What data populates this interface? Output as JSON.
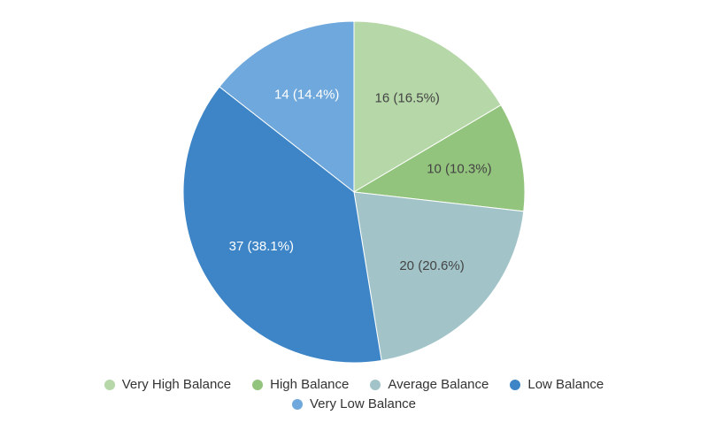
{
  "chart_data": {
    "type": "pie",
    "title": "",
    "slices": [
      {
        "name": "Very High Balance",
        "value": 16,
        "label": "16 (16.5%)",
        "color": "#b6d7a8"
      },
      {
        "name": "High Balance",
        "value": 10,
        "label": "10 (10.3%)",
        "color": "#93c47d"
      },
      {
        "name": "Average Balance",
        "value": 20,
        "label": "20 (20.6%)",
        "color": "#a2c4c9"
      },
      {
        "name": "Low Balance",
        "value": 37,
        "label": "37 (38.1%)",
        "color": "#3d85c6"
      },
      {
        "name": "Very Low Balance",
        "value": 14,
        "label": "14 (14.4%)",
        "color": "#6fa8dc"
      }
    ],
    "legend_position": "bottom",
    "label_colors": {
      "dark": "#444444",
      "light": "#ffffff"
    }
  },
  "legend": {
    "row1": [
      "Very High Balance",
      "High Balance",
      "Average Balance",
      "Low Balance"
    ],
    "row2": [
      "Very Low Balance"
    ]
  }
}
